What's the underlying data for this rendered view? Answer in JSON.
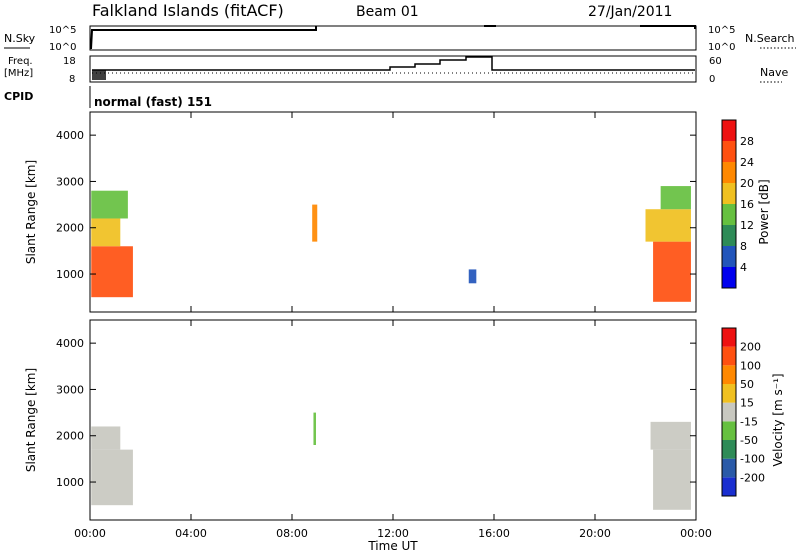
{
  "header": {
    "station": "Falkland Islands (fitACF)",
    "beam": "Beam 01",
    "date": "27/Jan/2011"
  },
  "nsky_panel": {
    "left_label": "N.Sky",
    "left_ticks": [
      "10^5",
      "10^0"
    ],
    "right_label": "N.Search",
    "right_ticks": [
      "10^5",
      "10^0"
    ]
  },
  "freq_panel": {
    "left_label_1": "Freq.",
    "left_label_2": "[MHz]",
    "left_ticks": [
      "18",
      "8"
    ],
    "right_label": "Nave",
    "right_ticks": [
      "60",
      "0"
    ]
  },
  "cpid_panel": {
    "label": "CPID",
    "program": "normal (fast) 151"
  },
  "x_axis": {
    "label": "Time UT",
    "ticks": [
      "00:00",
      "04:00",
      "08:00",
      "12:00",
      "16:00",
      "20:00",
      "00:00"
    ]
  },
  "power_panel": {
    "ylabel": "Slant Range [km]",
    "yticks": [
      "4000",
      "3000",
      "2000",
      "1000"
    ],
    "colorbar_label": "Power [dB]",
    "colorbar_ticks": [
      "28",
      "24",
      "20",
      "16",
      "12",
      "8",
      "4"
    ],
    "colorbar_colors": [
      "#0000ee",
      "#2255bb",
      "#2e8b57",
      "#66c040",
      "#f0c020",
      "#ff8800",
      "#ff5010",
      "#ee1111"
    ]
  },
  "velocity_panel": {
    "ylabel": "Slant Range [km]",
    "yticks": [
      "4000",
      "3000",
      "2000",
      "1000"
    ],
    "colorbar_label": "Velocity [m s⁻¹]",
    "colorbar_ticks": [
      "200",
      "100",
      "50",
      "15",
      "-15",
      "-50",
      "-100",
      "-200"
    ],
    "colorbar_colors": [
      "#1a2fd0",
      "#2a5aa8",
      "#2e8b57",
      "#66c040",
      "#c8c8c0",
      "#f0c020",
      "#ff8800",
      "#ff5010",
      "#ee1111"
    ]
  },
  "chart_data": [
    {
      "type": "heatmap",
      "quantity": "power",
      "x_unit": "hours UT",
      "xlim": [
        0,
        24
      ],
      "ylim": [
        180,
        4500
      ],
      "blocks": [
        {
          "x": [
            0.05,
            1.7
          ],
          "y": [
            500,
            1600
          ],
          "level": 6
        },
        {
          "x": [
            0.05,
            1.2
          ],
          "y": [
            1600,
            2200
          ],
          "level": 4
        },
        {
          "x": [
            0.05,
            1.5
          ],
          "y": [
            2200,
            2800
          ],
          "level": 3
        },
        {
          "x": [
            8.8,
            9.0
          ],
          "y": [
            1700,
            2500
          ],
          "level": 5
        },
        {
          "x": [
            15.0,
            15.3
          ],
          "y": [
            800,
            1100
          ],
          "level": 1
        },
        {
          "x": [
            22.3,
            23.8
          ],
          "y": [
            400,
            1700
          ],
          "level": 6
        },
        {
          "x": [
            22.0,
            23.8
          ],
          "y": [
            1700,
            2400
          ],
          "level": 4
        },
        {
          "x": [
            22.6,
            23.8
          ],
          "y": [
            2400,
            2900
          ],
          "level": 3
        }
      ]
    },
    {
      "type": "heatmap",
      "quantity": "velocity",
      "x_unit": "hours UT",
      "xlim": [
        0,
        24
      ],
      "ylim": [
        180,
        4500
      ],
      "blocks": [
        {
          "x": [
            0.05,
            1.7
          ],
          "y": [
            500,
            1700
          ],
          "level": 4
        },
        {
          "x": [
            0.05,
            1.2
          ],
          "y": [
            1700,
            2200
          ],
          "level": 4
        },
        {
          "x": [
            8.85,
            8.95
          ],
          "y": [
            1800,
            2500
          ],
          "level": 3
        },
        {
          "x": [
            22.3,
            23.8
          ],
          "y": [
            400,
            1700
          ],
          "level": 4
        },
        {
          "x": [
            22.2,
            23.8
          ],
          "y": [
            1700,
            2300
          ],
          "level": 4
        }
      ]
    }
  ]
}
